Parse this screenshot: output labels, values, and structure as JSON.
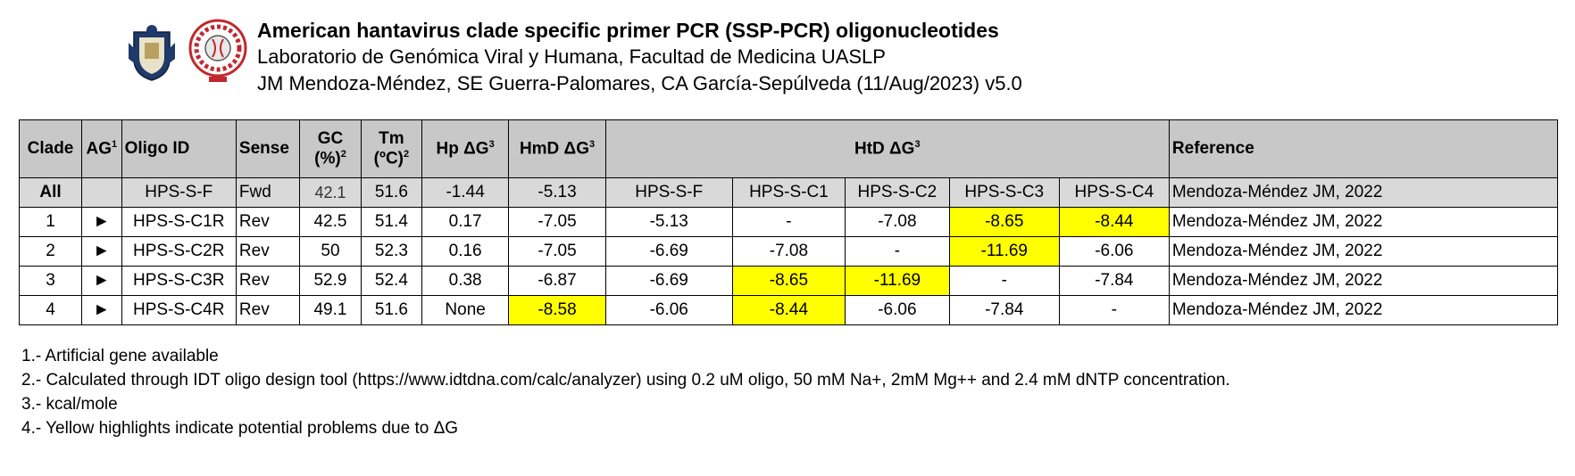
{
  "header": {
    "title": "American hantavirus clade specific primer PCR (SSP-PCR) oligonucleotides",
    "line2": "Laboratorio de Genómica Viral y Humana, Facultad de Medicina UASLP",
    "line3": "JM Mendoza-Méndez, SE Guerra-Palomares, CA García-Sepúlveda (11/Aug/2023) v5.0"
  },
  "table": {
    "headers": {
      "clade": "Clade",
      "ag": "AG",
      "ag_sup": "1",
      "oligo": "Oligo ID",
      "sense": "Sense",
      "gc_line1": "GC",
      "gc_line2": "(%)",
      "gc_sup": "2",
      "tm_line1": "Tm",
      "tm_line2": "(ºC)",
      "tm_sup": "2",
      "hp": "Hp ΔG",
      "hp_sup": "3",
      "hmd": "HmD ΔG",
      "hmd_sup": "3",
      "htd": "HtD ΔG",
      "htd_sup": "3",
      "reference": "Reference"
    },
    "all_row": {
      "clade": "All",
      "ag": "",
      "oligo": "HPS-S-F",
      "sense": "Fwd",
      "gc": "42.1",
      "tm": "51.6",
      "hp": "-1.44",
      "hmd": "-5.13",
      "htd": [
        "HPS-S-F",
        "HPS-S-C1",
        "HPS-S-C2",
        "HPS-S-C3",
        "HPS-S-C4"
      ],
      "reference": "Mendoza-Méndez JM, 2022"
    },
    "rows": [
      {
        "clade": "1",
        "ag": "►",
        "oligo": "HPS-S-C1R",
        "sense": "Rev",
        "gc": "42.5",
        "tm": "51.4",
        "hp": "0.17",
        "hmd": "-7.05",
        "htd": [
          "-5.13",
          "-",
          "-7.08",
          "-8.65",
          "-8.44"
        ],
        "reference": "Mendoza-Méndez JM, 2022"
      },
      {
        "clade": "2",
        "ag": "►",
        "oligo": "HPS-S-C2R",
        "sense": "Rev",
        "gc": "50",
        "tm": "52.3",
        "hp": "0.16",
        "hmd": "-7.05",
        "htd": [
          "-6.69",
          "-7.08",
          "-",
          "-11.69",
          "-6.06"
        ],
        "reference": "Mendoza-Méndez JM, 2022"
      },
      {
        "clade": "3",
        "ag": "►",
        "oligo": "HPS-S-C3R",
        "sense": "Rev",
        "gc": "52.9",
        "tm": "52.4",
        "hp": "0.38",
        "hmd": "-6.87",
        "htd": [
          "-6.69",
          "-8.65",
          "-11.69",
          "-",
          "-7.84"
        ],
        "reference": "Mendoza-Méndez JM, 2022"
      },
      {
        "clade": "4",
        "ag": "►",
        "oligo": "HPS-S-C4R",
        "sense": "Rev",
        "gc": "49.1",
        "tm": "51.6",
        "hp": "None",
        "hmd": "-8.58",
        "htd": [
          "-6.06",
          "-8.44",
          "-6.06",
          "-7.84",
          "-"
        ],
        "reference": "Mendoza-Méndez JM, 2022"
      }
    ],
    "highlight_color": "#ffff00"
  },
  "notes": [
    "1.- Artificial gene available",
    "2.- Calculated through IDT oligo design tool (https://www.idtdna.com/calc/analyzer) using 0.2 uM oligo,  50 mM Na+, 2mM Mg++ and 2.4 mM dNTP concentration.",
    "3.- kcal/mole",
    "4.- Yellow highlights indicate potential problems due to ΔG"
  ]
}
